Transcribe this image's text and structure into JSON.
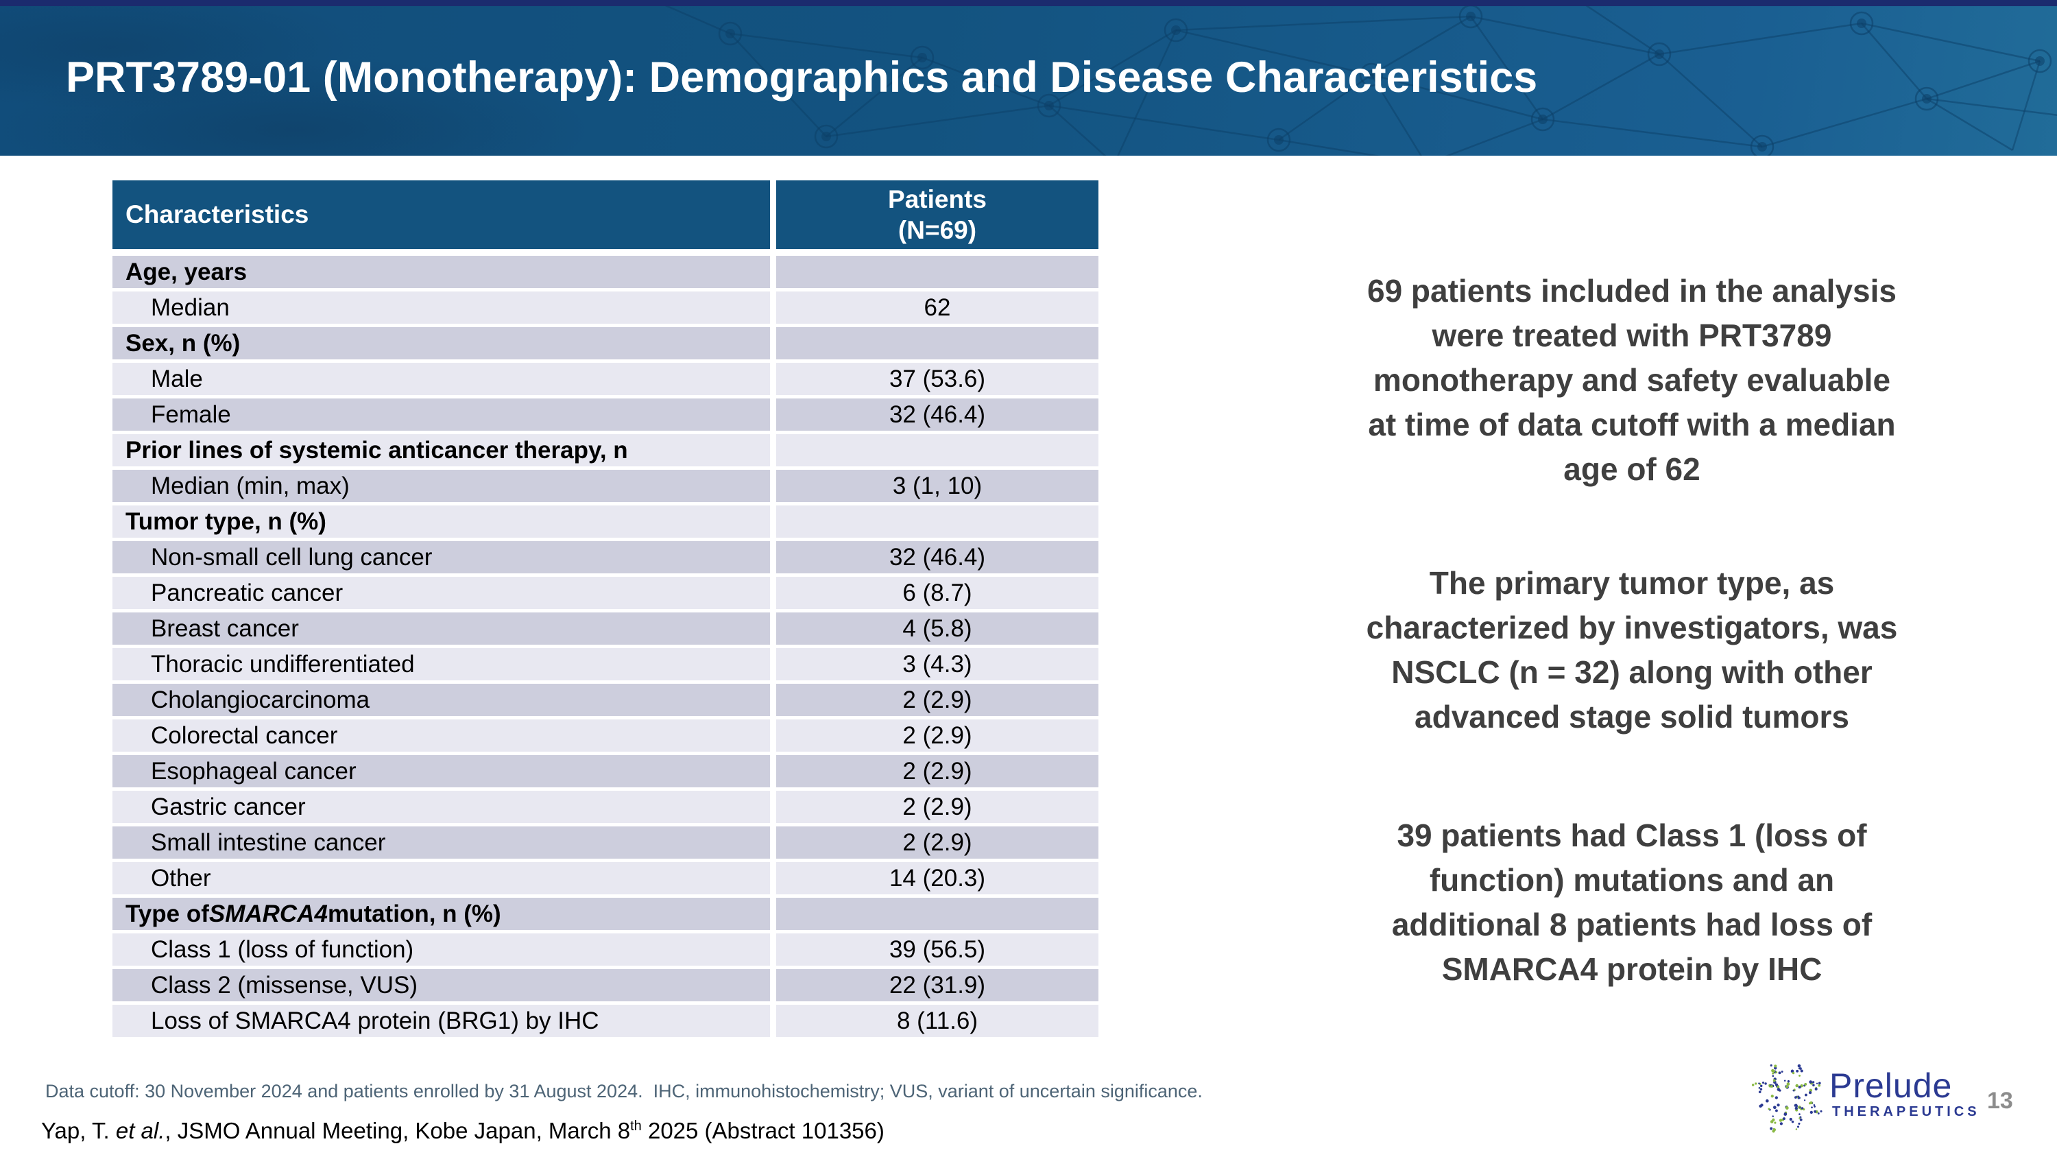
{
  "slide": {
    "title": "PRT3789-01 (Monotherapy): Demographics and Disease Characteristics",
    "page_number": "13"
  },
  "table": {
    "header": {
      "characteristics": "Characteristics",
      "patients_line1": "Patients",
      "patients_line2": "(N=69)"
    },
    "rows": [
      {
        "label": "Age, years",
        "value": "",
        "bold": true
      },
      {
        "label": "Median",
        "value": "62"
      },
      {
        "label": "Sex, n (%)",
        "value": "",
        "bold": true
      },
      {
        "label": "Male",
        "value": "37 (53.6)"
      },
      {
        "label": "Female",
        "value": "32 (46.4)"
      },
      {
        "label": "Prior lines of systemic anticancer therapy, n",
        "value": "",
        "bold": true
      },
      {
        "label": "Median (min, max)",
        "value": "3 (1, 10)"
      },
      {
        "label": "Tumor type, n (%)",
        "value": "",
        "bold": true
      },
      {
        "label": "Non-small cell lung cancer",
        "value": "32 (46.4)"
      },
      {
        "label": "Pancreatic cancer",
        "value": "6 (8.7)"
      },
      {
        "label": "Breast cancer",
        "value": "4 (5.8)"
      },
      {
        "label": "Thoracic undifferentiated",
        "value": "3 (4.3)"
      },
      {
        "label": "Cholangiocarcinoma",
        "value": "2 (2.9)"
      },
      {
        "label": "Colorectal cancer",
        "value": "2 (2.9)"
      },
      {
        "label": "Esophageal cancer",
        "value": "2 (2.9)"
      },
      {
        "label": "Gastric cancer",
        "value": "2 (2.9)"
      },
      {
        "label": "Small intestine cancer",
        "value": "2 (2.9)"
      },
      {
        "label": "Other",
        "value": "14 (20.3)"
      },
      {
        "parts": [
          {
            "t": "Type of "
          },
          {
            "t": "SMARCA4",
            "i": true
          },
          {
            "t": " mutation, n (%)"
          }
        ],
        "value": "",
        "bold": true
      },
      {
        "label": "Class 1 (loss of function)",
        "value": "39 (56.5)"
      },
      {
        "label": "Class 2 (missense, VUS)",
        "value": "22 (31.9)"
      },
      {
        "label": "Loss of SMARCA4 protein (BRG1) by IHC",
        "value": "8 (11.6)"
      }
    ]
  },
  "right_panel": {
    "blocks": [
      {
        "lines": [
          "69 patients included in the analysis",
          "were treated with PRT3789",
          "monotherapy and safety evaluable",
          "at time of data cutoff with a median",
          "age of 62"
        ]
      },
      {
        "lines": [
          "The primary tumor type, as",
          "characterized by investigators, was",
          "NSCLC (n = 32) along with other",
          "advanced stage solid tumors"
        ]
      },
      {
        "lines": [
          "39 patients had Class 1 (loss of",
          "function) mutations and an",
          "additional 8 patients had loss of",
          "SMARCA4 protein by IHC"
        ]
      }
    ]
  },
  "footer": {
    "note": "Data cutoff: 30 November 2024 and patients enrolled by 31 August 2024.  IHC, immunohistochemistry; VUS, variant of uncertain significance.",
    "citation_parts": [
      {
        "t": "Yap, T. "
      },
      {
        "t": "et al.",
        "i": true
      },
      {
        "t": ", JSMO Annual Meeting, Kobe Japan, March 8"
      },
      {
        "t": "th",
        "sup": true
      },
      {
        "t": " 2025 (Abstract 101356)"
      }
    ]
  },
  "logo": {
    "name": "Prelude",
    "sub": "THERAPEUTICS"
  },
  "colors": {
    "top_strip_navy": "#1b2b6e",
    "banner_blue": "#135380",
    "table_header_blue": "#13537f",
    "row_dark": "#cdcedd",
    "row_light": "#e8e8f1",
    "summary_text": "#3f3f3f",
    "footnote_text": "#4d6476",
    "logo_blue": "#2b3a92",
    "logo_green": "#8ab944",
    "page_number_gray": "#8c8c8c"
  }
}
